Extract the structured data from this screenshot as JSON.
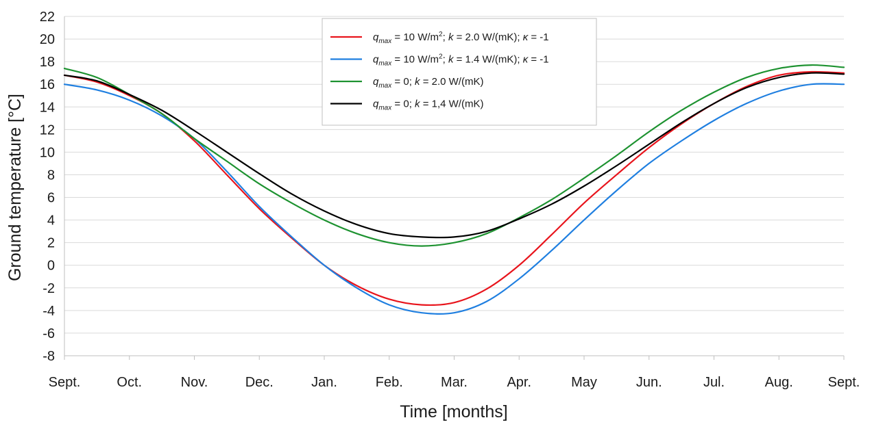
{
  "chart_data": {
    "type": "line",
    "title": "",
    "xlabel": "Time [months]",
    "ylabel_prefix": "Ground temperature [",
    "ylabel_unit": "°C",
    "ylabel_suffix": "]",
    "ylim": [
      -8,
      22
    ],
    "y_step": 2,
    "x_categories": [
      "Sept.",
      "Oct.",
      "Nov.",
      "Dec.",
      "Jan.",
      "Feb.",
      "Mar.",
      "Apr.",
      "May",
      "Jun.",
      "Jul.",
      "Aug.",
      "Sept."
    ],
    "grid": true,
    "legend_position": "top-center",
    "series": [
      {
        "name": "q_max = 10 W/m²; k = 2.0 W/(mK); κ = -1",
        "legend": {
          "q": "q",
          "sub": "max",
          "eq": " = 10 W/m",
          "sup": "2",
          "sep": "; ",
          "k": "k",
          "rest": " = 2.0 W/(mK); ",
          "kappa": "κ",
          "tail": " = -1"
        },
        "color": "#e8141c",
        "x": [
          0,
          0.5,
          1,
          1.5,
          2,
          2.5,
          3,
          3.5,
          4,
          4.5,
          5,
          5.5,
          6,
          6.5,
          7,
          7.5,
          8,
          8.5,
          9,
          9.5,
          10,
          10.5,
          11,
          11.5,
          12
        ],
        "y": [
          16.8,
          16.2,
          15.0,
          13.4,
          11.0,
          8.0,
          5.0,
          2.4,
          0.0,
          -1.8,
          -3.0,
          -3.5,
          -3.3,
          -2.1,
          0.0,
          2.7,
          5.5,
          8.0,
          10.4,
          12.5,
          14.3,
          15.8,
          16.8,
          17.1,
          17.0
        ]
      },
      {
        "name": "q_max = 10 W/m²; k = 1.4 W/(mK); κ = -1",
        "legend": {
          "q": "q",
          "sub": "max",
          "eq": " = 10 W/m",
          "sup": "2",
          "sep": "; ",
          "k": "k",
          "rest": " = 1.4 W/(mK); ",
          "kappa": "κ",
          "tail": " = -1"
        },
        "color": "#1f7fe0",
        "x": [
          0,
          0.5,
          1,
          1.5,
          2,
          2.5,
          3,
          3.5,
          4,
          4.5,
          5,
          5.5,
          6,
          6.5,
          7,
          7.5,
          8,
          8.5,
          9,
          9.5,
          10,
          10.5,
          11,
          11.5,
          12
        ],
        "y": [
          16.0,
          15.5,
          14.6,
          13.2,
          11.2,
          8.3,
          5.2,
          2.5,
          0.0,
          -2.0,
          -3.5,
          -4.2,
          -4.2,
          -3.2,
          -1.2,
          1.3,
          4.0,
          6.6,
          9.0,
          11.0,
          12.8,
          14.3,
          15.4,
          16.0,
          16.0
        ]
      },
      {
        "name": "q_max = 0; k = 2.0 W/(mK)",
        "legend": {
          "q": "q",
          "sub": "max",
          "eq": " = 0",
          "sup": "",
          "sep": "; ",
          "k": "k",
          "rest": " = 2.0 W/(mK)",
          "kappa": "",
          "tail": ""
        },
        "color": "#1d9230",
        "x": [
          0,
          0.5,
          1,
          1.5,
          2,
          2.5,
          3,
          3.5,
          4,
          4.5,
          5,
          5.5,
          6,
          6.5,
          7,
          7.5,
          8,
          8.5,
          9,
          9.5,
          10,
          10.5,
          11,
          11.5,
          12
        ],
        "y": [
          17.4,
          16.6,
          15.1,
          13.4,
          11.2,
          9.2,
          7.2,
          5.5,
          4.0,
          2.8,
          2.0,
          1.7,
          2.0,
          2.8,
          4.2,
          5.8,
          7.7,
          9.7,
          11.8,
          13.7,
          15.3,
          16.6,
          17.4,
          17.7,
          17.5
        ]
      },
      {
        "name": "q_max = 0; k = 1,4 W/(mK)",
        "legend": {
          "q": "q",
          "sub": "max",
          "eq": " = 0",
          "sup": "",
          "sep": "; ",
          "k": "k",
          "rest": " = 1,4 W/(mK)",
          "kappa": "",
          "tail": ""
        },
        "color": "#000000",
        "x": [
          0,
          0.5,
          1,
          1.5,
          2,
          2.5,
          3,
          3.5,
          4,
          4.5,
          5,
          5.5,
          6,
          6.5,
          7,
          7.5,
          8,
          8.5,
          9,
          9.5,
          10,
          10.5,
          11,
          11.5,
          12
        ],
        "y": [
          16.8,
          16.3,
          15.1,
          13.7,
          11.9,
          10.0,
          8.1,
          6.3,
          4.8,
          3.6,
          2.8,
          2.5,
          2.5,
          3.0,
          4.1,
          5.4,
          7.0,
          8.8,
          10.7,
          12.6,
          14.3,
          15.7,
          16.6,
          17.0,
          16.9
        ]
      }
    ]
  }
}
